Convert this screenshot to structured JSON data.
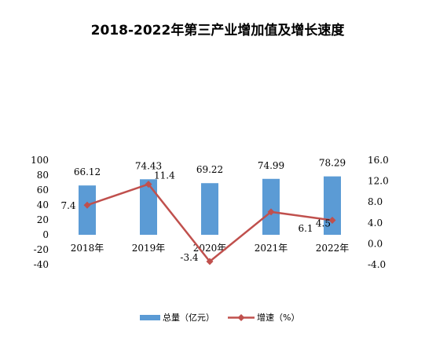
{
  "chart_data": {
    "type": "bar+line",
    "title": "2018-2022年第三产业增加值及增长速度",
    "categories": [
      "2018年",
      "2019年",
      "2020年",
      "2021年",
      "2022年"
    ],
    "series": [
      {
        "name": "总量（亿元）",
        "type": "bar",
        "axis": "left",
        "color": "#5B9BD5",
        "values": [
          66.12,
          74.43,
          69.22,
          74.99,
          78.29
        ],
        "labels": [
          "66.12",
          "74.43",
          "69.22",
          "74.99",
          "78.29"
        ]
      },
      {
        "name": "增速（%）",
        "type": "line",
        "axis": "right",
        "color": "#C0504D",
        "values": [
          7.4,
          11.4,
          -3.4,
          6.1,
          4.5
        ],
        "labels": [
          "7.4",
          "11.4",
          "-3.4",
          "6.1",
          "4.5"
        ]
      }
    ],
    "y_left": {
      "ylim": [
        -40,
        100
      ],
      "ticks": [
        "100",
        "80",
        "60",
        "40",
        "20",
        "0",
        "-20",
        "-40"
      ],
      "tick_values": [
        100,
        80,
        60,
        40,
        20,
        0,
        -20,
        -40
      ]
    },
    "y_right": {
      "ylim": [
        -4,
        16
      ],
      "ticks": [
        "16.0",
        "12.0",
        "8.0",
        "4.0",
        "0.0",
        "-4.0"
      ],
      "tick_values": [
        16,
        12,
        8,
        4,
        0,
        -4
      ]
    },
    "grid": false,
    "legend": {
      "position": "bottom"
    }
  }
}
